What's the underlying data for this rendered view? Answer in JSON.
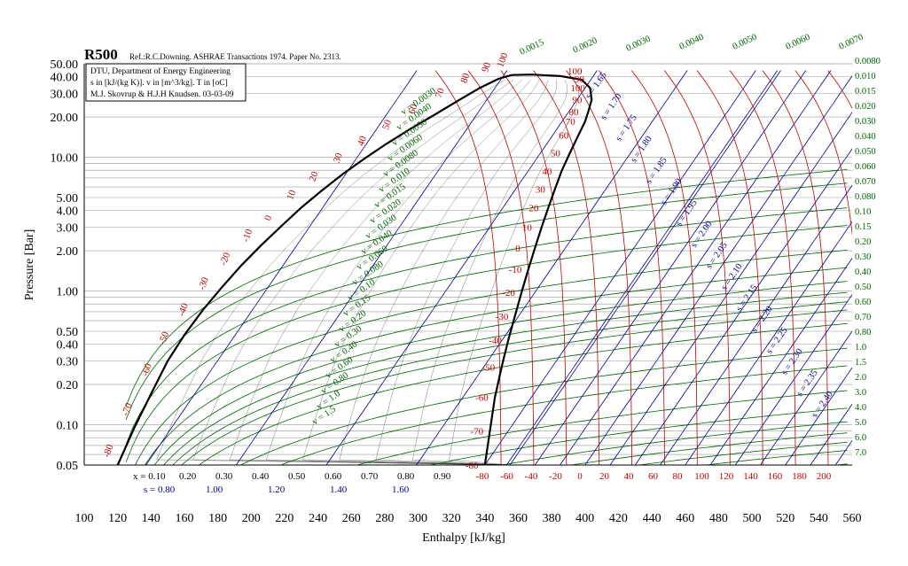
{
  "chart_data": {
    "type": "line",
    "title": "R500",
    "reference": "Ref.:R.C.Downing. ASHRAE Transactions 1974. Paper No. 2313.",
    "info_box": [
      "DTU, Department of Energy Engineering",
      "s in [kJ/(kg K)]. v in [m^3/kg]. T in [oC]",
      "M.J. Skovrup & H.J.H Knudsen. 03-03-09"
    ],
    "xlabel": "Enthalpy [kJ/kg]",
    "ylabel": "Pressure [Bar]",
    "x_scale": "linear",
    "y_scale": "log",
    "xlim": [
      100,
      560
    ],
    "ylim": [
      0.05,
      50
    ],
    "x_ticks": [
      "100",
      "120",
      "140",
      "160",
      "180",
      "200",
      "220",
      "240",
      "260",
      "280",
      "300",
      "320",
      "340",
      "360",
      "380",
      "400",
      "420",
      "440",
      "460",
      "480",
      "500",
      "520",
      "540",
      "560"
    ],
    "y_ticks": [
      {
        "value": 0.05,
        "label": "0.05"
      },
      {
        "value": 0.1,
        "label": "0.10"
      },
      {
        "value": 0.2,
        "label": "0.20"
      },
      {
        "value": 0.3,
        "label": "0.30"
      },
      {
        "value": 0.4,
        "label": "0.40"
      },
      {
        "value": 0.5,
        "label": "0.50"
      },
      {
        "value": 1.0,
        "label": "1.00"
      },
      {
        "value": 2.0,
        "label": "2.00"
      },
      {
        "value": 3.0,
        "label": "3.00"
      },
      {
        "value": 4.0,
        "label": "4.00"
      },
      {
        "value": 5.0,
        "label": "5.00"
      },
      {
        "value": 10.0,
        "label": "10.00"
      },
      {
        "value": 20.0,
        "label": "20.00"
      },
      {
        "value": 30.0,
        "label": "30.00"
      },
      {
        "value": 40.0,
        "label": "40.00"
      },
      {
        "value": 50.0,
        "label": "50.00"
      }
    ],
    "saturation_dome": {
      "liquid": [
        [
          120,
          0.05
        ],
        [
          130,
          0.095
        ],
        [
          141,
          0.18
        ],
        [
          150,
          0.3
        ],
        [
          160,
          0.47
        ],
        [
          171,
          0.72
        ],
        [
          182,
          1.05
        ],
        [
          194,
          1.55
        ],
        [
          206,
          2.2
        ],
        [
          218,
          3.05
        ],
        [
          230,
          4.2
        ],
        [
          242,
          5.6
        ],
        [
          255,
          7.5
        ],
        [
          268,
          9.8
        ],
        [
          281,
          12.6
        ],
        [
          295,
          16.2
        ],
        [
          309,
          20.5
        ],
        [
          324,
          26.5
        ],
        [
          337,
          33
        ],
        [
          348,
          38.5
        ],
        [
          356,
          41.2
        ]
      ],
      "vapor": [
        [
          340,
          0.05
        ],
        [
          343,
          0.09
        ],
        [
          346,
          0.16
        ],
        [
          350,
          0.27
        ],
        [
          354,
          0.43
        ],
        [
          358,
          0.65
        ],
        [
          362,
          0.98
        ],
        [
          366,
          1.45
        ],
        [
          370,
          2.1
        ],
        [
          374,
          3.0
        ],
        [
          378,
          4.2
        ],
        [
          382,
          5.8
        ],
        [
          386,
          7.9
        ],
        [
          391,
          10.8
        ],
        [
          396,
          14.6
        ],
        [
          400,
          18.5
        ],
        [
          402,
          22
        ],
        [
          404,
          27
        ],
        [
          403,
          33
        ],
        [
          398,
          38
        ],
        [
          385,
          40.5
        ],
        [
          368,
          41.5
        ],
        [
          356,
          41.2
        ]
      ]
    },
    "temperature_labels_liquid": [
      "-80",
      "-70",
      "-60",
      "-50",
      "-40",
      "-30",
      "-20",
      "-10",
      "0",
      "10",
      "20",
      "30",
      "40",
      "50",
      "60",
      "70",
      "80",
      "90",
      "100"
    ],
    "temperature_labels_vapor": [
      "-80",
      "-70",
      "-60",
      "-50",
      "-40",
      "-30",
      "-20",
      "-10",
      "0",
      "10",
      "20",
      "30",
      "40",
      "50",
      "60",
      "70",
      "80",
      "90",
      "100"
    ],
    "superheat_temperature_ticks": [
      "-80",
      "-60",
      "-40",
      "-20",
      "0",
      "20",
      "40",
      "60",
      "80",
      "100",
      "120",
      "140",
      "160",
      "180",
      "200"
    ],
    "superheat_temperature_values": [
      -80,
      -60,
      -40,
      -20,
      0,
      20,
      40,
      60,
      80,
      100,
      120,
      140,
      160,
      180,
      200
    ],
    "superheat_isotherm_top_labels": [
      "100",
      "90"
    ],
    "quality_labels": [
      "x = 0.10",
      "0.20",
      "0.30",
      "0.40",
      "0.50",
      "0.60",
      "0.70",
      "0.80",
      "0.90"
    ],
    "quality_values": [
      0.1,
      0.2,
      0.3,
      0.4,
      0.5,
      0.6,
      0.7,
      0.8,
      0.9
    ],
    "entropy_bottom_labels": [
      "s = 0.80",
      "1.00",
      "1.20",
      "1.40",
      "1.60"
    ],
    "entropy_bottom_values": [
      0.8,
      1.0,
      1.2,
      1.4,
      1.6
    ],
    "entropy_vapor_labels": [
      "s = 1.65",
      "s = 1.70",
      "s = 1.75",
      "s = 1.80",
      "s = 1.85",
      "s = 1.90",
      "s = 1.95",
      "s = 2.00",
      "s = 2.05",
      "s = 2.10",
      "s = 2.15",
      "s = 2.20",
      "s = 2.25",
      "s = 2.30",
      "s = 2.35",
      "s = 2.40"
    ],
    "entropy_vapor_values": [
      1.65,
      1.7,
      1.75,
      1.8,
      1.85,
      1.9,
      1.95,
      2.0,
      2.05,
      2.1,
      2.15,
      2.2,
      2.25,
      2.3,
      2.35,
      2.4
    ],
    "specific_volume_dome_labels": [
      "v = 0.0030",
      "v = 0.0040",
      "v = 0.0050",
      "v = 0.0060",
      "v = 0.0080",
      "v = 0.010",
      "v = 0.015",
      "v = 0.020",
      "v = 0.030",
      "v = 0.040",
      "v = 0.060",
      "v = 0.080",
      "v = 0.10",
      "v = 0.15",
      "v = 0.20",
      "v = 0.30",
      "v = 0.40",
      "v = 0.60",
      "v = 0.80",
      "v = 1.0",
      "v = 1.5"
    ],
    "specific_volume_top_labels": [
      "0.0015",
      "0.0020",
      "0.0030",
      "0.0040",
      "0.0050",
      "0.0060",
      "0.0070"
    ],
    "specific_volume_right_labels": [
      "0.0080",
      "0.010",
      "0.015",
      "0.020",
      "0.030",
      "0.040",
      "0.050",
      "0.060",
      "0.070",
      "0.080",
      "0.10",
      "0.15",
      "0.20",
      "0.30",
      "0.40",
      "0.50",
      "0.60",
      "0.70",
      "0.80",
      "1.0",
      "1.5",
      "2.0",
      "3.0",
      "4.0",
      "5.0",
      "6.0",
      "7.0"
    ],
    "specific_volume_right_values": [
      0.008,
      0.01,
      0.015,
      0.02,
      0.03,
      0.04,
      0.05,
      0.06,
      0.07,
      0.08,
      0.1,
      0.15,
      0.2,
      0.3,
      0.4,
      0.5,
      0.6,
      0.7,
      0.8,
      1.0,
      1.5,
      2.0,
      3.0,
      4.0,
      5.0,
      6.0,
      7.0
    ],
    "colors": {
      "isotherm": "#c00000",
      "isochore": "#006400",
      "isentrope": "#00008b",
      "dome": "#000000",
      "grid": "#9a9a9a"
    },
    "grid": true
  }
}
